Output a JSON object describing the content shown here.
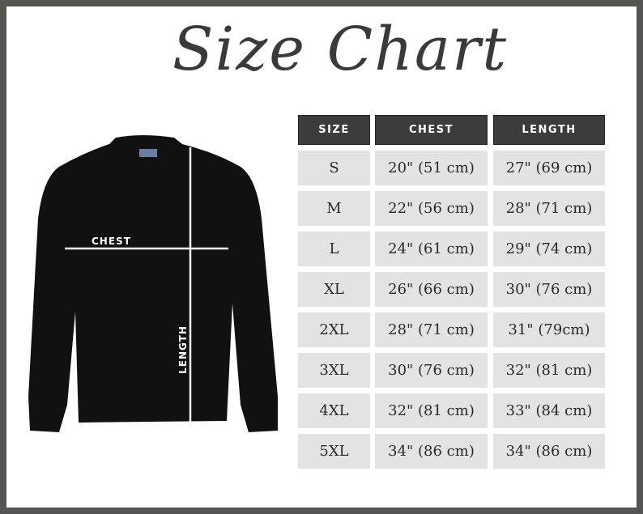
{
  "title": "Size Chart",
  "garment_labels": {
    "chest": "CHEST",
    "length": "LENGTH"
  },
  "colors": {
    "header_bg": "#3c3c3c",
    "row_bg": "#e3e3e3",
    "frame": "#555553",
    "garment": "#111111"
  },
  "table": {
    "headers": [
      "SIZE",
      "CHEST",
      "LENGTH"
    ],
    "rows": [
      [
        "S",
        "20\" (51 cm)",
        "27\" (69 cm)"
      ],
      [
        "M",
        "22\" (56 cm)",
        "28\" (71 cm)"
      ],
      [
        "L",
        "24\" (61 cm)",
        "29\" (74 cm)"
      ],
      [
        "XL",
        "26\" (66 cm)",
        "30\" (76 cm)"
      ],
      [
        "2XL",
        "28\" (71 cm)",
        "31\" (79cm)"
      ],
      [
        "3XL",
        "30\" (76 cm)",
        "32\" (81 cm)"
      ],
      [
        "4XL",
        "32\" (81 cm)",
        "33\" (84 cm)"
      ],
      [
        "5XL",
        "34\" (86 cm)",
        "34\" (86 cm)"
      ]
    ]
  }
}
